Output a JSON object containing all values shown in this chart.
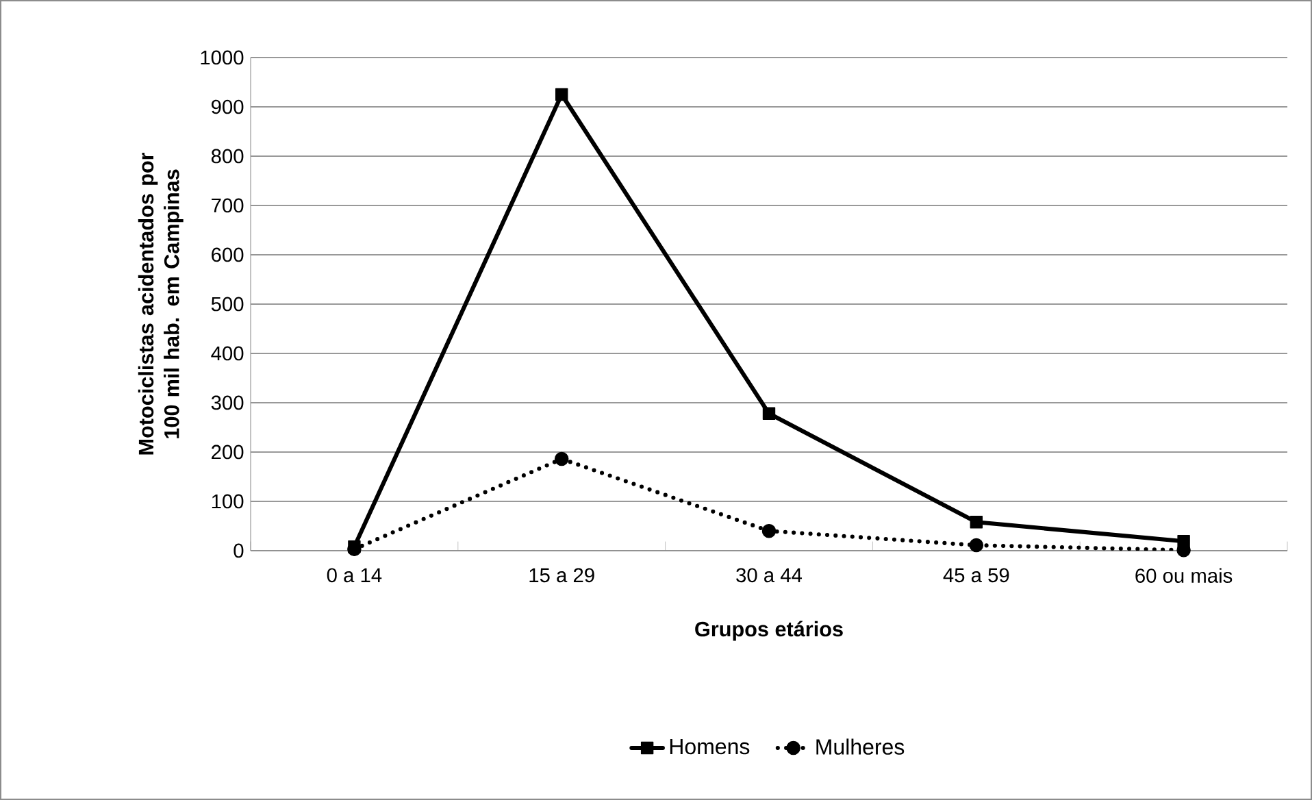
{
  "chart_data": {
    "type": "line",
    "xlabel": "Grupos etários",
    "ylabel": "Motociclistas acidentados por 100 mil hab. em Campinas",
    "categories": [
      "0 a 14",
      "15 a 29",
      "30 a 44",
      "45 a 59",
      "60 ou mais"
    ],
    "series": [
      {
        "name": "Homens",
        "color": "#000000",
        "values": [
          8,
          925,
          278,
          58,
          19
        ],
        "marker": "square",
        "line_style": "solid"
      },
      {
        "name": "Mulheres",
        "color": "#000000",
        "values": [
          3,
          186,
          40,
          11,
          1
        ],
        "marker": "circle",
        "line_style": "dotted"
      }
    ],
    "ylim": [
      0,
      1000
    ],
    "yticks": [
      0,
      100,
      200,
      300,
      400,
      500,
      600,
      700,
      800,
      900,
      1000
    ],
    "grid": "y",
    "legend": "bottom"
  }
}
